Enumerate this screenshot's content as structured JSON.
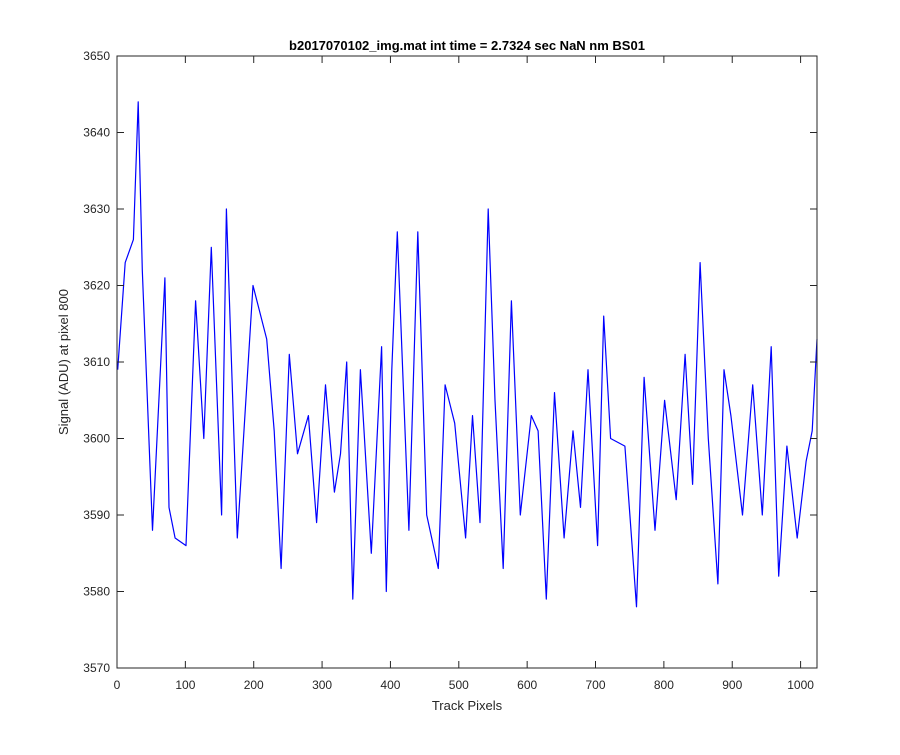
{
  "chart_data": {
    "type": "line",
    "title": "b2017070102_img.mat int time = 2.7324 sec  NaN nm BS01",
    "xlabel": "Track Pixels",
    "ylabel": "Signal (ADU) at pixel 800",
    "xlim": [
      0,
      1024
    ],
    "ylim": [
      3570,
      3650
    ],
    "xticks": [
      0,
      100,
      200,
      300,
      400,
      500,
      600,
      700,
      800,
      900,
      1000
    ],
    "yticks": [
      3570,
      3580,
      3590,
      3600,
      3610,
      3620,
      3630,
      3640,
      3650
    ],
    "grid": false,
    "line_color": "#0000ff",
    "series": [
      {
        "x": [
          1,
          12,
          24,
          31,
          37,
          52,
          70,
          76,
          85,
          101,
          115,
          127,
          138,
          153,
          160,
          176,
          199,
          219,
          230,
          240,
          252,
          264,
          280,
          292,
          305,
          318,
          327,
          336,
          345,
          356,
          372,
          387,
          394,
          402,
          410,
          427,
          440,
          453,
          470,
          480,
          494,
          510,
          520,
          531,
          543,
          553,
          565,
          577,
          590,
          606,
          616,
          628,
          640,
          654,
          667,
          678,
          689,
          703,
          712,
          722,
          743,
          760,
          771,
          787,
          801,
          818,
          831,
          842,
          853,
          865,
          879,
          888,
          898,
          915,
          930,
          944,
          957,
          968,
          980,
          995,
          1008,
          1017,
          1024
        ],
        "y": [
          3609,
          3623,
          3626,
          3644,
          3622,
          3588,
          3621,
          3591,
          3587,
          3586,
          3618,
          3600,
          3625,
          3590,
          3630,
          3587,
          3620,
          3613,
          3601,
          3583,
          3611,
          3598,
          3603,
          3589,
          3607,
          3593,
          3598,
          3610,
          3579,
          3609,
          3585,
          3612,
          3580,
          3609,
          3627,
          3588,
          3627,
          3590,
          3583,
          3607,
          3602,
          3587,
          3603,
          3589,
          3630,
          3605,
          3583,
          3618,
          3590,
          3603,
          3601,
          3579,
          3606,
          3587,
          3601,
          3591,
          3609,
          3586,
          3616,
          3600,
          3599,
          3578,
          3608,
          3588,
          3605,
          3592,
          3611,
          3594,
          3623,
          3600,
          3581,
          3609,
          3603,
          3590,
          3607,
          3590,
          3612,
          3582,
          3599,
          3587,
          3597,
          3601,
          3613
        ]
      }
    ]
  }
}
